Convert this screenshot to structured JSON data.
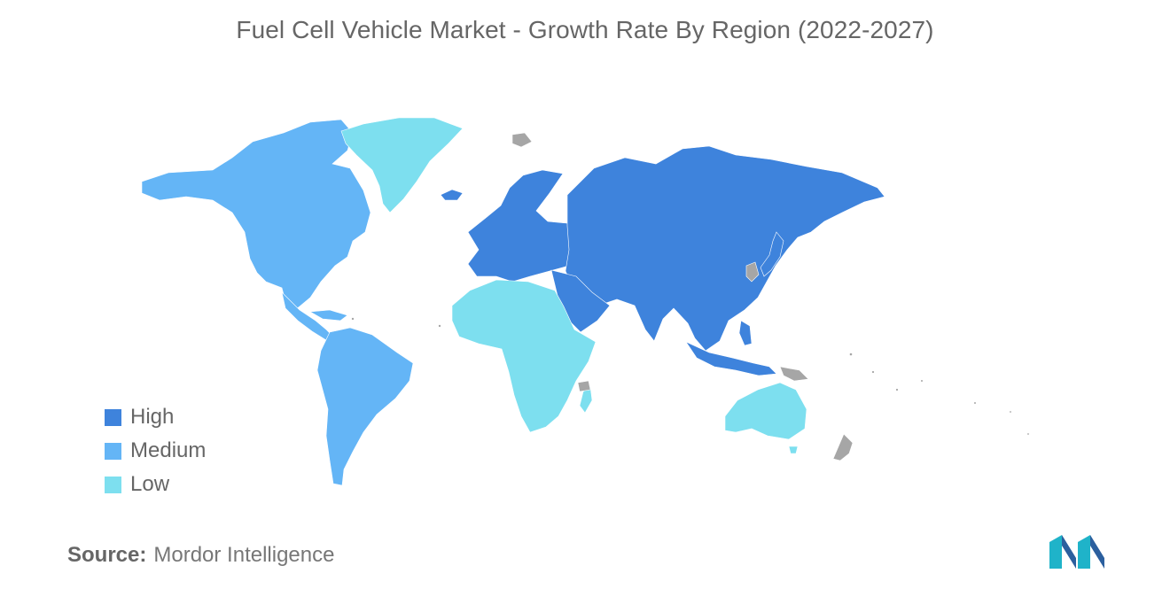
{
  "chart": {
    "title": "Fuel Cell Vehicle Market - Growth Rate By Region (2022-2027)"
  },
  "legend": [
    {
      "label": "High",
      "color": "#3e83dc"
    },
    {
      "label": "Medium",
      "color": "#64b5f6"
    },
    {
      "label": "Low",
      "color": "#7ddfef"
    }
  ],
  "colors": {
    "high": "#3e83dc",
    "medium": "#64b5f6",
    "low": "#7ddfef",
    "no_data": "#a6a6a6"
  },
  "regions": [
    {
      "name": "North America",
      "level": "Medium"
    },
    {
      "name": "South America",
      "level": "Medium"
    },
    {
      "name": "Europe",
      "level": "High"
    },
    {
      "name": "Asia-Pacific",
      "level": "High"
    },
    {
      "name": "Middle East",
      "level": "High"
    },
    {
      "name": "Greenland",
      "level": "Low"
    },
    {
      "name": "Africa",
      "level": "Low"
    },
    {
      "name": "Australia",
      "level": "Low"
    }
  ],
  "source": {
    "label": "Source:",
    "value": "Mordor Intelligence"
  }
}
